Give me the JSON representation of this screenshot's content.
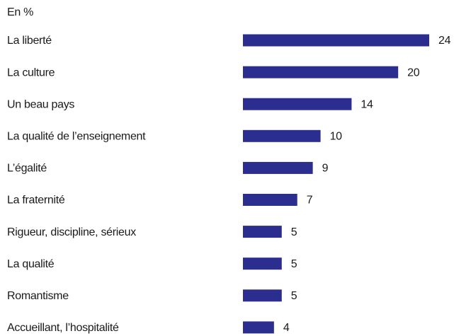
{
  "chart_data": {
    "type": "bar",
    "orientation": "horizontal",
    "subtitle": "En %",
    "categories": [
      "La liberté",
      "La culture",
      "Un beau pays",
      "La qualité de l’enseignement",
      "L’égalité",
      "La fraternité",
      "Rigueur, discipline, sérieux",
      "La qualité",
      "Romantisme",
      "Accueillant, l’hospitalité"
    ],
    "values": [
      24,
      20,
      14,
      10,
      9,
      7,
      5,
      5,
      5,
      4
    ],
    "color": "#2b2d8f"
  }
}
